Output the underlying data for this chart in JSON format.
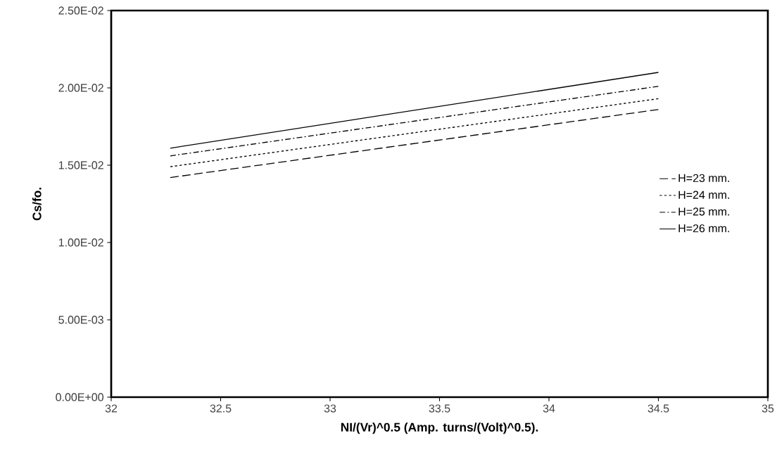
{
  "chart_data": {
    "type": "line",
    "xlabel": "NI/(Vr)^0.5 (Amp. turns/(Volt)^0.5).",
    "ylabel": "Cs/fo.",
    "xlim": [
      32,
      35
    ],
    "xticks": [
      32,
      32.5,
      33,
      33.5,
      34,
      34.5,
      35
    ],
    "ylim": [
      0,
      0.025
    ],
    "yticks": [
      {
        "value": 0,
        "label": "0.00E+00"
      },
      {
        "value": 0.005,
        "label": "5.00E-03"
      },
      {
        "value": 0.01,
        "label": "1.00E-02"
      },
      {
        "value": 0.015,
        "label": "1.50E-02"
      },
      {
        "value": 0.02,
        "label": "2.00E-02"
      },
      {
        "value": 0.025,
        "label": "2.50E-02"
      }
    ],
    "grid": false,
    "legend": "right",
    "marker": "none",
    "x": [
      32.27,
      34.5
    ],
    "series": [
      {
        "name": "H=23 mm.",
        "color": "#000000",
        "line_style": "dashed",
        "values": [
          0.0142,
          0.0186
        ]
      },
      {
        "name": "H=24 mm.",
        "color": "#000000",
        "line_style": "dotted",
        "values": [
          0.0149,
          0.0193
        ]
      },
      {
        "name": "H=25 mm.",
        "color": "#000000",
        "line_style": "dashdotted",
        "values": [
          0.0156,
          0.0201
        ]
      },
      {
        "name": "H=26 mm.",
        "color": "#000000",
        "line_style": "solid",
        "values": [
          0.0161,
          0.021
        ]
      }
    ]
  }
}
